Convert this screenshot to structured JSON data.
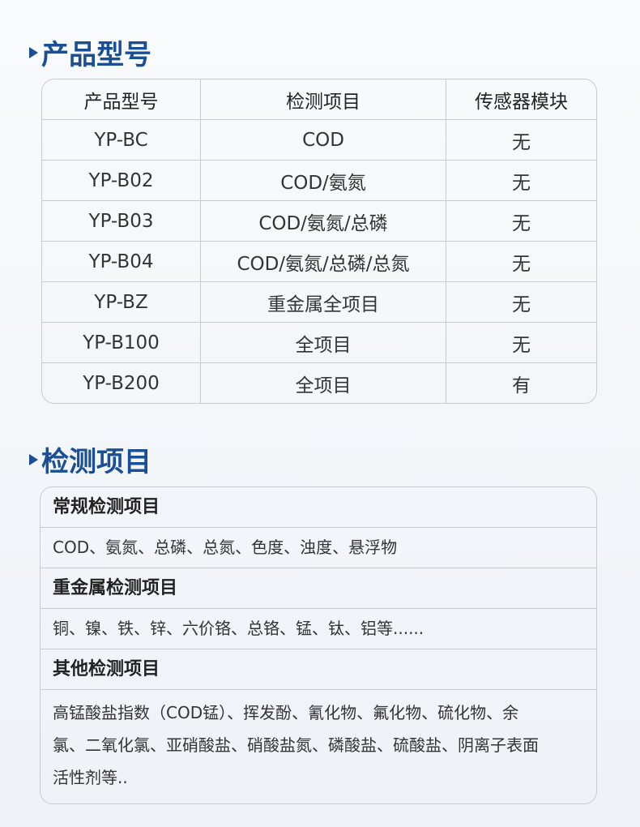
{
  "section1": {
    "title": "产品型号",
    "headers": [
      "产品型号",
      "检测项目",
      "传感器模块"
    ],
    "rows": [
      [
        "YP-BC",
        "COD",
        "无"
      ],
      [
        "YP-B02",
        "COD/氨氮",
        "无"
      ],
      [
        "YP-B03",
        "COD/氨氮/总磷",
        "无"
      ],
      [
        "YP-B04",
        "COD/氨氮/总磷/总氮",
        "无"
      ],
      [
        "YP-BZ",
        "重金属全项目",
        "无"
      ],
      [
        "YP-B100",
        "全项目",
        "无"
      ],
      [
        "YP-B200",
        "全项目",
        "有"
      ]
    ]
  },
  "section2": {
    "title": "检测项目",
    "groups": [
      {
        "title": "常规检测项目",
        "items": "COD、氨氮、总磷、总氮、色度、浊度、悬浮物"
      },
      {
        "title": "重金属检测项目",
        "items": "铜、镍、铁、锌、六价铬、总铬、锰、钛、铝等......"
      },
      {
        "title": "其他检测项目",
        "items": "高锰酸盐指数（COD锰）、挥发酚、氰化物、氟化物、硫化物、余氯、二氧化氯、亚硝酸盐、硝酸盐氮、磷酸盐、硫酸盐、阴离子表面活性剂等.."
      }
    ]
  },
  "colors": {
    "accent": "#1a4f96"
  }
}
